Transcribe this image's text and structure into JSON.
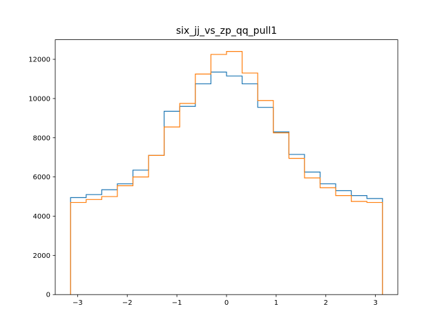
{
  "chart_data": {
    "type": "histogram",
    "title": "six_jj_vs_zp_qq_pull1",
    "xlabel": "",
    "ylabel": "",
    "xlim": [
      -3.45,
      3.45
    ],
    "ylim": [
      0,
      13000
    ],
    "grid": false,
    "x_ticks": [
      -3,
      -2,
      -1,
      0,
      1,
      2,
      3
    ],
    "x_tick_labels": [
      "−3",
      "−2",
      "−1",
      "0",
      "1",
      "2",
      "3"
    ],
    "y_ticks": [
      0,
      2000,
      4000,
      6000,
      8000,
      10000,
      12000
    ],
    "y_tick_labels": [
      "0",
      "2000",
      "4000",
      "6000",
      "8000",
      "10000",
      "12000"
    ],
    "bin_edges": [
      -3.1416,
      -2.8274,
      -2.5133,
      -2.1991,
      -1.885,
      -1.5708,
      -1.2566,
      -0.9425,
      -0.6283,
      -0.3142,
      0.0,
      0.3142,
      0.6283,
      0.9425,
      1.2566,
      1.5708,
      1.885,
      2.1991,
      2.5133,
      2.8274,
      3.1416
    ],
    "series": [
      {
        "color": "#1f77b4",
        "values": [
          4950,
          5100,
          5350,
          5650,
          6350,
          7100,
          9350,
          9600,
          10750,
          11350,
          11150,
          10750,
          9550,
          8300,
          7150,
          6250,
          5650,
          5300,
          5050,
          4900
        ]
      },
      {
        "color": "#ff7f0e",
        "values": [
          4700,
          4850,
          5000,
          5550,
          6000,
          7100,
          8550,
          9750,
          11250,
          12250,
          12400,
          11300,
          9900,
          8250,
          6950,
          5950,
          5450,
          5050,
          4750,
          4700
        ]
      }
    ]
  }
}
